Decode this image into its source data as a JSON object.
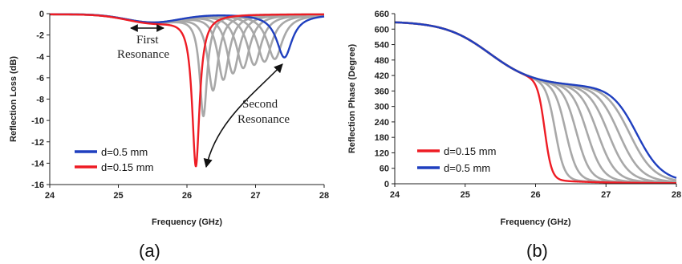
{
  "chart_data": [
    {
      "type": "line",
      "panel_label": "(a)",
      "xlabel": "Frequency (GHz)",
      "ylabel": "Reflection Loss (dB)",
      "xlim": [
        24,
        28
      ],
      "ylim": [
        -16,
        0
      ],
      "xticks": [
        24,
        25,
        26,
        27,
        28
      ],
      "yticks": [
        0,
        -2,
        -4,
        -6,
        -8,
        -10,
        -12,
        -14,
        -16
      ],
      "grid": false,
      "legend_position": "bottom-left",
      "annotations": [
        {
          "text_lines": [
            "First",
            "Resonance"
          ]
        },
        {
          "text_lines": [
            "Second",
            "Resonance"
          ]
        }
      ],
      "colors": {
        "blue": "#1f3fbf",
        "red": "#ee1c24",
        "gray": "#a8a8a8"
      },
      "series": [
        {
          "name": "d=0.5 mm",
          "color": "#1f3fbf",
          "resonance_x": 27.42,
          "resonance_y": -4.1
        },
        {
          "name": "d=0.15 mm",
          "color": "#ee1c24",
          "resonance_x": 26.13,
          "resonance_y": -14.3
        },
        {
          "color": "#a8a8a8",
          "resonance_x": 26.24,
          "resonance_y": -9.6
        },
        {
          "color": "#a8a8a8",
          "resonance_x": 26.38,
          "resonance_y": -7.2
        },
        {
          "color": "#a8a8a8",
          "resonance_x": 26.53,
          "resonance_y": -6.2
        },
        {
          "color": "#a8a8a8",
          "resonance_x": 26.67,
          "resonance_y": -5.6
        },
        {
          "color": "#a8a8a8",
          "resonance_x": 26.82,
          "resonance_y": -5.1
        },
        {
          "color": "#a8a8a8",
          "resonance_x": 26.98,
          "resonance_y": -4.8
        },
        {
          "color": "#a8a8a8",
          "resonance_x": 27.13,
          "resonance_y": -4.5
        },
        {
          "color": "#a8a8a8",
          "resonance_x": 27.28,
          "resonance_y": -4.25
        }
      ]
    },
    {
      "type": "line",
      "panel_label": "(b)",
      "xlabel": "Frequency (GHz)",
      "ylabel": "Reflection Phase (Degree)",
      "xlim": [
        24,
        28
      ],
      "ylim": [
        0,
        660
      ],
      "xticks": [
        24,
        25,
        26,
        27,
        28
      ],
      "yticks": [
        0,
        60,
        120,
        180,
        240,
        300,
        360,
        420,
        480,
        540,
        600,
        660
      ],
      "grid": false,
      "legend_position": "bottom-left",
      "colors": {
        "blue": "#1f3fbf",
        "red": "#ee1c24",
        "gray": "#a8a8a8"
      },
      "series": [
        {
          "name": "d=0.15 mm",
          "color": "#ee1c24",
          "transition_x": 26.13
        },
        {
          "name": "d=0.5 mm",
          "color": "#1f3fbf",
          "transition_x": 27.43
        },
        {
          "color": "#a8a8a8",
          "transition_x": 26.28
        },
        {
          "color": "#a8a8a8",
          "transition_x": 26.43
        },
        {
          "color": "#a8a8a8",
          "transition_x": 26.58
        },
        {
          "color": "#a8a8a8",
          "transition_x": 26.73
        },
        {
          "color": "#a8a8a8",
          "transition_x": 26.88
        },
        {
          "color": "#a8a8a8",
          "transition_x": 27.03
        },
        {
          "color": "#a8a8a8",
          "transition_x": 27.18
        },
        {
          "color": "#a8a8a8",
          "transition_x": 27.33
        }
      ]
    }
  ]
}
